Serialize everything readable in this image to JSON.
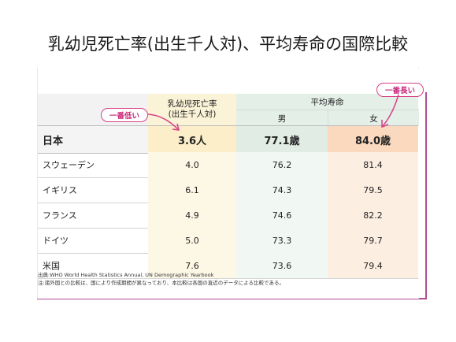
{
  "title": "乳幼児死亡率(出生千人対)、平均寿命の国際比較",
  "header": {
    "infant_mortality": [
      "乳幼児死亡率",
      "(出生千人対)"
    ],
    "life_expectancy": "平均寿命",
    "male": "男",
    "female": "女"
  },
  "callouts": {
    "lowest": "一番低い",
    "longest": "一番長い"
  },
  "rows": [
    {
      "country": "日本",
      "infant": "3.6人",
      "male": "77.1歳",
      "female": "84.0歳"
    },
    {
      "country": "スウェーデン",
      "infant": "4.0",
      "male": "76.2",
      "female": "81.4"
    },
    {
      "country": "イギリス",
      "infant": "6.1",
      "male": "74.3",
      "female": "79.5"
    },
    {
      "country": "フランス",
      "infant": "4.9",
      "male": "74.6",
      "female": "82.2"
    },
    {
      "country": "ドイツ",
      "infant": "5.0",
      "male": "73.3",
      "female": "79.7"
    },
    {
      "country": "米国",
      "infant": "7.6",
      "male": "73.6",
      "female": "79.4"
    }
  ],
  "notes": {
    "source": "出典:WHO World Health Statistics Annual, UN Demographic Yearbook",
    "caveat": "注:諸外国との比較は、国により作成期間が異なっており、本比較は各国の直近のデータによる比較である。"
  },
  "colors": {
    "accent": "#d83f86",
    "frame": "#b04b98"
  }
}
